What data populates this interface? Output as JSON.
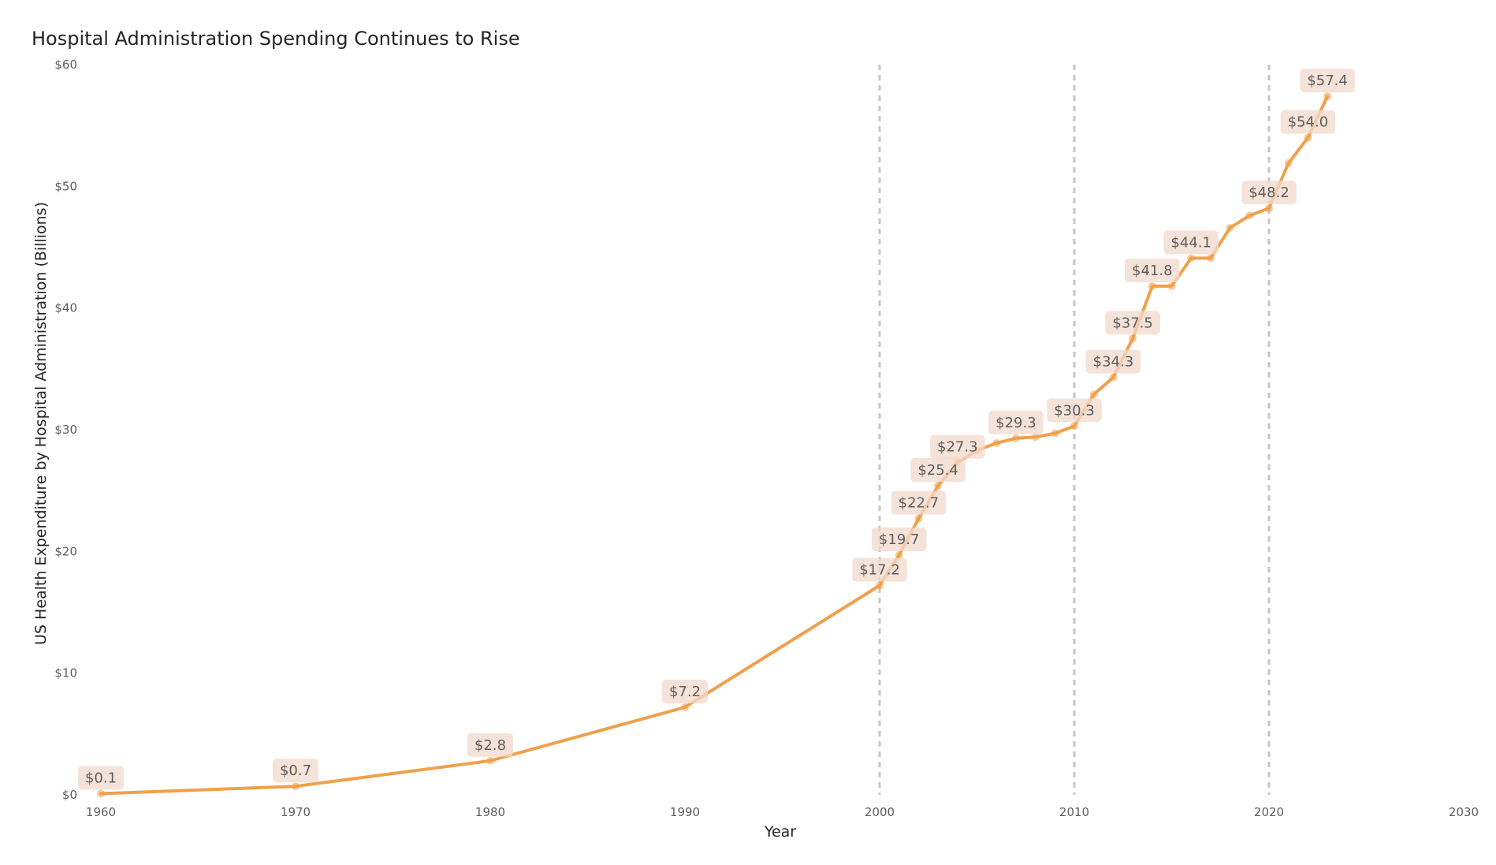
{
  "chart_data": {
    "type": "line",
    "title": "Hospital Administration Spending Continues to Rise",
    "xlabel": "Year",
    "ylabel": "US Health Expenditure by Hospital Administration (Billions)",
    "xlim": [
      1960,
      2030
    ],
    "ylim": [
      0,
      60
    ],
    "x_ticks": [
      1960,
      1970,
      1980,
      1990,
      2000,
      2010,
      2020,
      2030
    ],
    "y_ticks": [
      0,
      10,
      20,
      30,
      40,
      50,
      60
    ],
    "y_tick_labels": [
      "$0",
      "$10",
      "$20",
      "$30",
      "$40",
      "$50",
      "$60"
    ],
    "reference_lines_x": [
      2000,
      2010,
      2020
    ],
    "grid": false,
    "colors": {
      "line": "#f0a04b",
      "reference_line": "#c8c6c4",
      "label_background": "#f2d9cc",
      "label_text": "#605e5c",
      "axis_text": "#605e5c",
      "title_text": "#252423"
    },
    "series": [
      {
        "values": [
          {
            "x": 1960,
            "y": 0.1,
            "label": "$0.1"
          },
          {
            "x": 1970,
            "y": 0.7,
            "label": "$0.7"
          },
          {
            "x": 1980,
            "y": 2.8,
            "label": "$2.8"
          },
          {
            "x": 1990,
            "y": 7.2,
            "label": "$7.2"
          },
          {
            "x": 2000,
            "y": 17.2,
            "label": "$17.2"
          },
          {
            "x": 2001,
            "y": 19.7,
            "label": "$19.7"
          },
          {
            "x": 2002,
            "y": 22.7,
            "label": "$22.7"
          },
          {
            "x": 2003,
            "y": 25.4,
            "label": "$25.4"
          },
          {
            "x": 2004,
            "y": 27.3,
            "label": "$27.3"
          },
          {
            "x": 2005,
            "y": 28.3
          },
          {
            "x": 2006,
            "y": 28.9
          },
          {
            "x": 2007,
            "y": 29.3,
            "label": "$29.3"
          },
          {
            "x": 2008,
            "y": 29.4
          },
          {
            "x": 2009,
            "y": 29.7
          },
          {
            "x": 2010,
            "y": 30.3,
            "label": "$30.3"
          },
          {
            "x": 2011,
            "y": 32.9
          },
          {
            "x": 2012,
            "y": 34.3,
            "label": "$34.3"
          },
          {
            "x": 2013,
            "y": 37.5,
            "label": "$37.5"
          },
          {
            "x": 2014,
            "y": 41.8,
            "label": "$41.8"
          },
          {
            "x": 2015,
            "y": 41.8
          },
          {
            "x": 2016,
            "y": 44.1,
            "label": "$44.1"
          },
          {
            "x": 2017,
            "y": 44.1
          },
          {
            "x": 2018,
            "y": 46.6
          },
          {
            "x": 2019,
            "y": 47.6
          },
          {
            "x": 2020,
            "y": 48.2,
            "label": "$48.2"
          },
          {
            "x": 2021,
            "y": 51.9
          },
          {
            "x": 2022,
            "y": 54.0,
            "label": "$54.0"
          },
          {
            "x": 2023,
            "y": 57.4,
            "label": "$57.4"
          }
        ]
      }
    ]
  }
}
